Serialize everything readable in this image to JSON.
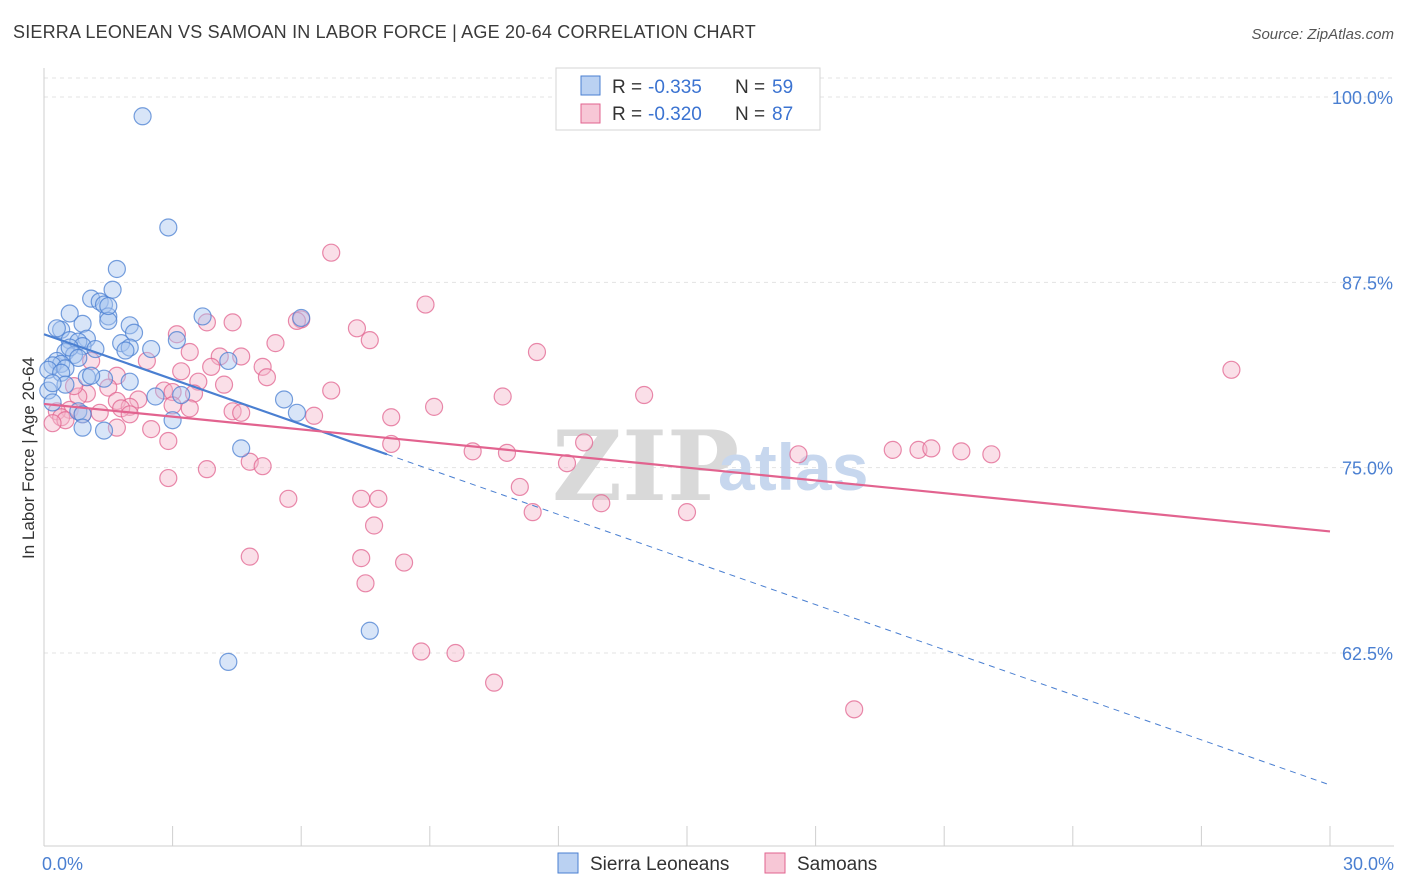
{
  "chart_data": {
    "type": "scatter",
    "title": "SIERRA LEONEAN VS SAMOAN IN LABOR FORCE | AGE 20-64 CORRELATION CHART",
    "source": "Source: ZipAtlas.com",
    "xlabel": "",
    "ylabel": "In Labor Force | Age 20-64",
    "xlim": [
      0,
      30
    ],
    "ylim": [
      51.5,
      102
    ],
    "x_tick_labels": [
      "0.0%",
      "30.0%"
    ],
    "y_ticks": [
      {
        "value": 100,
        "label": "100.0%"
      },
      {
        "value": 87.5,
        "label": "87.5%"
      },
      {
        "value": 75,
        "label": "75.0%"
      },
      {
        "value": 62.5,
        "label": "62.5%"
      }
    ],
    "legend": {
      "rows": [
        {
          "r_label": "R =",
          "r_value": "-0.335",
          "n_label": "N =",
          "n_value": "59"
        },
        {
          "r_label": "R =",
          "r_value": "-0.320",
          "n_label": "N =",
          "n_value": "87"
        }
      ]
    },
    "watermark": {
      "zip": "ZIP",
      "atlas": "atlas"
    },
    "colors": {
      "blue": "#4a7fd1",
      "blue_fill": "#a9c6ef",
      "pink": "#e2638f",
      "pink_fill": "#f5b9cc"
    },
    "series": [
      {
        "name": "Sierra Leoneans",
        "color": "#4a7fd1",
        "trend": {
          "x_start": 0,
          "y_start": 84.0,
          "x_end": 8.0,
          "y_end": 75.9,
          "dashed_to_x": 30,
          "dashed_to_y": 53.6
        },
        "points": [
          [
            2.3,
            98.7
          ],
          [
            2.9,
            91.2
          ],
          [
            1.7,
            88.4
          ],
          [
            1.6,
            87.0
          ],
          [
            1.1,
            86.4
          ],
          [
            1.3,
            86.2
          ],
          [
            1.4,
            86.0
          ],
          [
            0.6,
            85.4
          ],
          [
            1.5,
            85.2
          ],
          [
            1.5,
            84.9
          ],
          [
            2.0,
            84.6
          ],
          [
            0.9,
            84.7
          ],
          [
            0.4,
            84.3
          ],
          [
            2.1,
            84.1
          ],
          [
            1.0,
            83.7
          ],
          [
            0.6,
            83.6
          ],
          [
            0.8,
            83.5
          ],
          [
            1.8,
            83.4
          ],
          [
            0.9,
            83.2
          ],
          [
            2.0,
            83.1
          ],
          [
            1.2,
            83.0
          ],
          [
            0.5,
            82.8
          ],
          [
            1.9,
            82.9
          ],
          [
            0.7,
            82.6
          ],
          [
            0.3,
            82.2
          ],
          [
            0.4,
            82.0
          ],
          [
            0.2,
            81.9
          ],
          [
            0.5,
            81.7
          ],
          [
            0.1,
            81.6
          ],
          [
            0.4,
            81.4
          ],
          [
            1.0,
            81.1
          ],
          [
            1.4,
            81.0
          ],
          [
            0.5,
            80.6
          ],
          [
            0.1,
            80.2
          ],
          [
            2.0,
            80.8
          ],
          [
            3.1,
            83.6
          ],
          [
            3.7,
            85.2
          ],
          [
            4.3,
            82.2
          ],
          [
            6.0,
            85.1
          ],
          [
            0.2,
            79.4
          ],
          [
            0.8,
            78.8
          ],
          [
            0.9,
            78.6
          ],
          [
            3.2,
            79.9
          ],
          [
            2.6,
            79.8
          ],
          [
            3.0,
            78.2
          ],
          [
            5.6,
            79.6
          ],
          [
            5.9,
            78.7
          ],
          [
            4.6,
            76.3
          ],
          [
            1.4,
            77.5
          ],
          [
            0.9,
            77.7
          ],
          [
            7.6,
            64.0
          ],
          [
            4.3,
            61.9
          ],
          [
            1.1,
            81.2
          ],
          [
            0.6,
            83.1
          ],
          [
            1.5,
            85.9
          ],
          [
            0.3,
            84.4
          ],
          [
            2.5,
            83.0
          ],
          [
            0.8,
            82.4
          ],
          [
            0.2,
            80.7
          ]
        ]
      },
      {
        "name": "Samoans",
        "color": "#e2638f",
        "trend": {
          "x_start": 0,
          "y_start": 79.3,
          "x_end": 30,
          "y_end": 70.7
        },
        "points": [
          [
            6.7,
            89.5
          ],
          [
            8.9,
            86.0
          ],
          [
            3.8,
            84.8
          ],
          [
            4.4,
            84.8
          ],
          [
            6.0,
            85.0
          ],
          [
            7.3,
            84.4
          ],
          [
            3.1,
            84.0
          ],
          [
            7.6,
            83.6
          ],
          [
            5.4,
            83.4
          ],
          [
            11.5,
            82.8
          ],
          [
            3.4,
            82.8
          ],
          [
            4.6,
            82.5
          ],
          [
            4.1,
            82.5
          ],
          [
            2.4,
            82.2
          ],
          [
            3.9,
            81.8
          ],
          [
            5.1,
            81.8
          ],
          [
            3.2,
            81.5
          ],
          [
            5.2,
            81.1
          ],
          [
            1.7,
            81.2
          ],
          [
            3.6,
            80.8
          ],
          [
            4.2,
            80.6
          ],
          [
            1.5,
            80.4
          ],
          [
            2.8,
            80.2
          ],
          [
            3.0,
            80.1
          ],
          [
            6.7,
            80.2
          ],
          [
            3.5,
            80.0
          ],
          [
            1.0,
            80.0
          ],
          [
            0.8,
            79.8
          ],
          [
            2.2,
            79.6
          ],
          [
            1.7,
            79.5
          ],
          [
            10.7,
            79.8
          ],
          [
            14.0,
            79.9
          ],
          [
            9.1,
            79.1
          ],
          [
            3.0,
            79.2
          ],
          [
            2.0,
            79.1
          ],
          [
            1.8,
            79.0
          ],
          [
            0.6,
            78.9
          ],
          [
            0.3,
            78.8
          ],
          [
            1.3,
            78.7
          ],
          [
            4.4,
            78.8
          ],
          [
            4.6,
            78.7
          ],
          [
            6.3,
            78.5
          ],
          [
            8.1,
            78.4
          ],
          [
            0.9,
            78.6
          ],
          [
            0.4,
            78.4
          ],
          [
            0.5,
            78.2
          ],
          [
            0.2,
            78.0
          ],
          [
            2.5,
            77.6
          ],
          [
            1.7,
            77.7
          ],
          [
            2.9,
            76.8
          ],
          [
            8.1,
            76.6
          ],
          [
            10.0,
            76.1
          ],
          [
            10.8,
            76.0
          ],
          [
            12.6,
            76.7
          ],
          [
            17.6,
            75.9
          ],
          [
            19.8,
            76.2
          ],
          [
            20.4,
            76.2
          ],
          [
            20.7,
            76.3
          ],
          [
            21.4,
            76.1
          ],
          [
            22.1,
            75.9
          ],
          [
            4.8,
            75.4
          ],
          [
            5.1,
            75.1
          ],
          [
            12.2,
            75.3
          ],
          [
            3.8,
            74.9
          ],
          [
            2.9,
            74.3
          ],
          [
            11.1,
            73.7
          ],
          [
            7.4,
            72.9
          ],
          [
            5.7,
            72.9
          ],
          [
            7.8,
            72.9
          ],
          [
            13.0,
            72.6
          ],
          [
            11.4,
            72.0
          ],
          [
            15.0,
            72.0
          ],
          [
            7.7,
            71.1
          ],
          [
            4.8,
            69.0
          ],
          [
            7.4,
            68.9
          ],
          [
            8.4,
            68.6
          ],
          [
            7.5,
            67.2
          ],
          [
            8.8,
            62.6
          ],
          [
            9.6,
            62.5
          ],
          [
            10.5,
            60.5
          ],
          [
            18.9,
            58.7
          ],
          [
            27.7,
            81.6
          ],
          [
            5.9,
            84.9
          ],
          [
            1.1,
            82.2
          ],
          [
            2.0,
            78.6
          ],
          [
            0.7,
            80.5
          ],
          [
            3.4,
            79.0
          ]
        ]
      }
    ]
  }
}
